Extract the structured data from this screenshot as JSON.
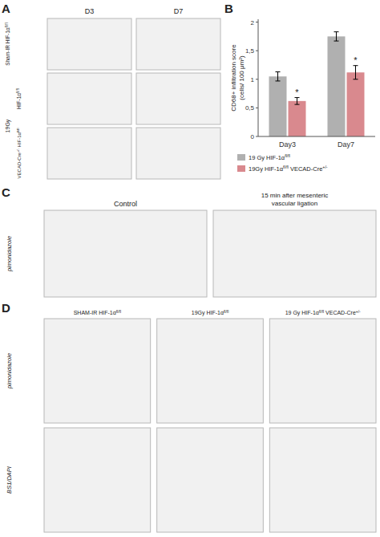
{
  "chart_data": {
    "type": "bar",
    "categories": [
      "Day3",
      "Day7"
    ],
    "ylabel": "CD68+ infiltration score\n(cells/ 100 μm²)",
    "ylim": [
      0,
      2.05
    ],
    "yticks": [
      0,
      {
        "value": 0.5,
        "label": "0,5"
      },
      1,
      {
        "value": 1.5,
        "label": "1,5"
      },
      2
    ],
    "grid": false,
    "legend": "bottom",
    "series": [
      {
        "name": "19 Gy HIF-1αfl/fl",
        "color": "#b0b0b0",
        "values": [
          1.05,
          1.75
        ],
        "errors": [
          0.08,
          0.08
        ]
      },
      {
        "name": "19Gy HIF-1αfl/fl VECAD-Cre+/-",
        "color": "#d9898e",
        "values": [
          0.62,
          1.12
        ],
        "errors": [
          0.06,
          0.12
        ]
      }
    ],
    "annotations": [
      {
        "text": "A"
      },
      {
        "text": "D3"
      },
      {
        "text": "D7"
      },
      {
        "text": "Sham-IR HIF-1αfl/fl"
      },
      {
        "text": "19Gy"
      },
      {
        "text": "HIF-1αfl/fl"
      },
      {
        "text": "VECAD-Cre+/- HIF-1αfl/fl"
      },
      {
        "text": "B"
      },
      {
        "text": "C"
      },
      {
        "text": "Control"
      },
      {
        "text": "15 min after mesenteric\nvascular ligation"
      },
      {
        "text": "pimonidazole"
      },
      {
        "text": "D"
      },
      {
        "text": "SHAM-IR HIF-1αfl/fl"
      },
      {
        "text": "19Gy HIF-1αfl/fl"
      },
      {
        "text": "19 Gy HIF-1αfl/fl VECAD-Cre+/-"
      },
      {
        "text": "pimonidazole"
      },
      {
        "text": "BS1/DAPI"
      },
      {
        "text": "*",
        "category": "Day3",
        "series": "19Gy HIF-1αfl/fl VECAD-Cre+/-"
      },
      {
        "text": "*",
        "category": "Day7",
        "series": "19Gy HIF-1αfl/fl VECAD-Cre+/-"
      }
    ]
  }
}
